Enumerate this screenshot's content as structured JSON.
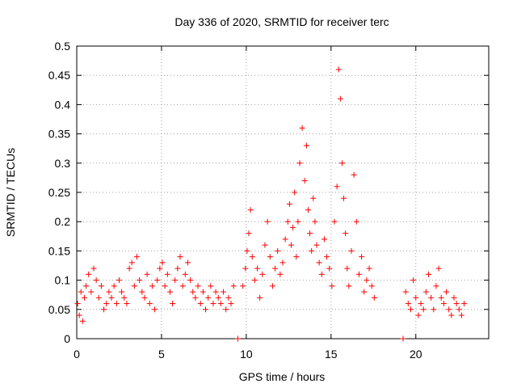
{
  "chart_data": {
    "type": "scatter",
    "title": "Day 336 of 2020, SRMTID for receiver terc",
    "xlabel": "GPS time / hours",
    "ylabel": "SRMTID / TECUs",
    "xlim": [
      0,
      24.3
    ],
    "ylim": [
      0,
      0.5
    ],
    "x_ticks": [
      0,
      5,
      10,
      15,
      20
    ],
    "x_tick_labels": [
      "0",
      "5",
      "10",
      "15",
      "20"
    ],
    "y_ticks": [
      0,
      0.05,
      0.1,
      0.15,
      0.2,
      0.25,
      0.3,
      0.35,
      0.4,
      0.45,
      0.5
    ],
    "y_tick_labels": [
      "0",
      "0.05",
      "0.1",
      "0.15",
      "0.2",
      "0.25",
      "0.3",
      "0.35",
      "0.4",
      "0.45",
      "0.5"
    ],
    "grid": true,
    "marker": "plus",
    "color": "#ff0000",
    "series": [
      {
        "name": "SRMTID",
        "x": [
          0.05,
          0.15,
          0.25,
          0.35,
          0.45,
          0.55,
          0.7,
          0.85,
          1.0,
          1.15,
          1.3,
          1.45,
          1.6,
          1.75,
          1.9,
          2.05,
          2.2,
          2.35,
          2.5,
          2.65,
          2.8,
          2.95,
          3.1,
          3.25,
          3.4,
          3.55,
          3.7,
          3.85,
          4.0,
          4.15,
          4.3,
          4.45,
          4.6,
          4.75,
          4.9,
          5.05,
          5.2,
          5.35,
          5.5,
          5.65,
          5.8,
          5.95,
          6.1,
          6.25,
          6.4,
          6.55,
          6.7,
          6.85,
          7.0,
          7.15,
          7.3,
          7.45,
          7.6,
          7.75,
          7.9,
          8.05,
          8.2,
          8.35,
          8.5,
          8.65,
          8.8,
          8.95,
          9.1,
          9.25,
          9.5,
          9.8,
          9.95,
          10.05,
          10.15,
          10.25,
          10.35,
          10.5,
          10.65,
          10.8,
          10.95,
          11.1,
          11.25,
          11.4,
          11.55,
          11.7,
          11.85,
          12.0,
          12.15,
          12.3,
          12.45,
          12.55,
          12.65,
          12.75,
          12.85,
          12.95,
          13.05,
          13.15,
          13.3,
          13.45,
          13.55,
          13.65,
          13.75,
          13.85,
          13.95,
          14.05,
          14.15,
          14.3,
          14.45,
          14.6,
          14.75,
          14.9,
          15.05,
          15.2,
          15.35,
          15.45,
          15.55,
          15.65,
          15.75,
          15.85,
          15.95,
          16.05,
          16.2,
          16.35,
          16.5,
          16.65,
          16.8,
          16.95,
          17.1,
          17.25,
          17.4,
          17.55,
          19.25,
          19.4,
          19.55,
          19.7,
          19.85,
          20.0,
          20.15,
          20.3,
          20.45,
          20.6,
          20.75,
          20.9,
          21.05,
          21.2,
          21.35,
          21.5,
          21.65,
          21.8,
          21.95,
          22.1,
          22.25,
          22.4,
          22.55,
          22.7,
          22.85
        ],
        "y": [
          0.06,
          0.04,
          0.08,
          0.03,
          0.07,
          0.09,
          0.11,
          0.08,
          0.12,
          0.1,
          0.07,
          0.09,
          0.05,
          0.06,
          0.08,
          0.07,
          0.09,
          0.06,
          0.1,
          0.08,
          0.07,
          0.06,
          0.12,
          0.13,
          0.09,
          0.14,
          0.1,
          0.08,
          0.07,
          0.11,
          0.06,
          0.09,
          0.05,
          0.1,
          0.12,
          0.13,
          0.09,
          0.11,
          0.08,
          0.06,
          0.1,
          0.12,
          0.14,
          0.09,
          0.11,
          0.13,
          0.1,
          0.08,
          0.07,
          0.09,
          0.06,
          0.08,
          0.05,
          0.07,
          0.09,
          0.06,
          0.08,
          0.07,
          0.06,
          0.08,
          0.05,
          0.07,
          0.06,
          0.09,
          0.0,
          0.09,
          0.12,
          0.15,
          0.18,
          0.22,
          0.14,
          0.1,
          0.12,
          0.07,
          0.11,
          0.16,
          0.2,
          0.14,
          0.09,
          0.12,
          0.15,
          0.11,
          0.13,
          0.17,
          0.2,
          0.23,
          0.16,
          0.19,
          0.25,
          0.14,
          0.2,
          0.3,
          0.36,
          0.27,
          0.33,
          0.22,
          0.18,
          0.15,
          0.24,
          0.2,
          0.16,
          0.13,
          0.11,
          0.17,
          0.14,
          0.12,
          0.09,
          0.2,
          0.26,
          0.46,
          0.41,
          0.3,
          0.24,
          0.18,
          0.12,
          0.09,
          0.15,
          0.28,
          0.2,
          0.11,
          0.14,
          0.08,
          0.1,
          0.12,
          0.09,
          0.07,
          0.0,
          0.08,
          0.06,
          0.05,
          0.1,
          0.07,
          0.04,
          0.06,
          0.05,
          0.08,
          0.11,
          0.07,
          0.05,
          0.09,
          0.12,
          0.07,
          0.06,
          0.08,
          0.05,
          0.04,
          0.07,
          0.06,
          0.05,
          0.04,
          0.06
        ]
      }
    ]
  }
}
